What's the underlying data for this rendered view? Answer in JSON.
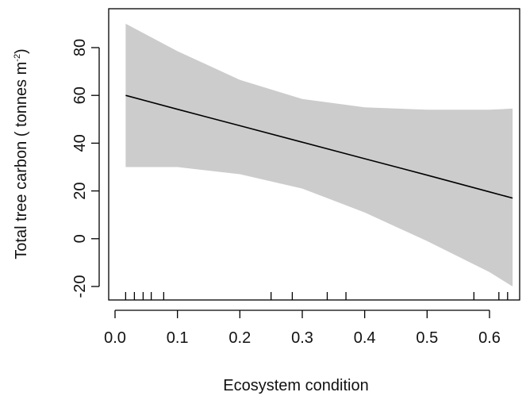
{
  "chart_data": {
    "type": "line",
    "title": "",
    "xlabel": "Ecosystem condition",
    "ylabel": "Total tree carbon ( tonnes m",
    "ylabel_superscript": "-2",
    "ylabel_close": ")",
    "xlim": [
      0.0,
      0.65
    ],
    "ylim": [
      -20,
      90
    ],
    "x_ticks": [
      0.0,
      0.1,
      0.2,
      0.3,
      0.4,
      0.5,
      0.6
    ],
    "x_tick_labels": [
      "0.0",
      "0.1",
      "0.2",
      "0.3",
      "0.4",
      "0.5",
      "0.6"
    ],
    "y_ticks": [
      -20,
      0,
      20,
      40,
      60,
      80
    ],
    "y_tick_labels": [
      "-20",
      "0",
      "20",
      "40",
      "60",
      "80"
    ],
    "grid": false,
    "legend": "none",
    "series": [
      {
        "name": "",
        "kind": "fitted line",
        "x": [
          0.017,
          0.1,
          0.2,
          0.3,
          0.4,
          0.5,
          0.6,
          0.637
        ],
        "y": [
          60.0,
          54.2,
          47.3,
          40.4,
          33.5,
          26.6,
          19.6,
          17.0
        ]
      }
    ],
    "confidence_band": {
      "x": [
        0.017,
        0.1,
        0.2,
        0.3,
        0.4,
        0.5,
        0.6,
        0.637
      ],
      "upper": [
        90.0,
        78.5,
        66.5,
        58.5,
        55.0,
        54.0,
        54.0,
        54.5
      ],
      "lower": [
        30.0,
        30.0,
        27.0,
        21.0,
        11.0,
        -1.0,
        -14.0,
        -20.0
      ]
    },
    "rug_x": [
      0.017,
      0.031,
      0.045,
      0.058,
      0.078,
      0.25,
      0.284,
      0.34,
      0.37,
      0.575,
      0.615,
      0.629
    ],
    "colors": {
      "band": "#cccccc",
      "line": "#000000",
      "axis": "#000000",
      "text": "#111111"
    }
  }
}
